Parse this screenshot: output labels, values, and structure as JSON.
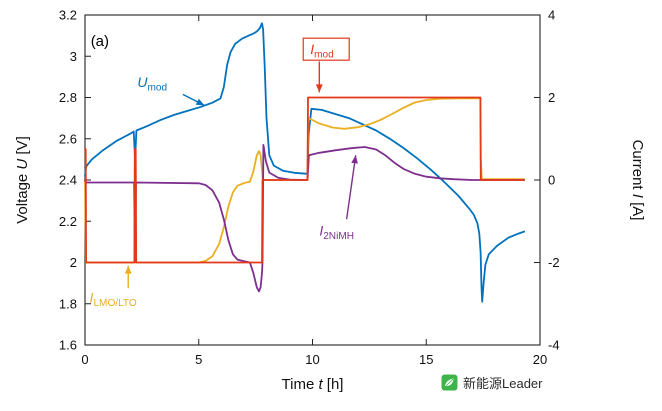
{
  "figure": {
    "panel_label": "(a)"
  },
  "chart_data": {
    "type": "line",
    "title": "",
    "xlabel_parts": {
      "pre": "Time ",
      "italic": "t",
      "post": " [h]"
    },
    "ylabel_left_parts": {
      "pre": "Voltage ",
      "italic": "U",
      "post": " [V]"
    },
    "ylabel_right_parts": {
      "pre": "Current ",
      "italic": "I",
      "post": " [A]"
    },
    "xlim": [
      0,
      20
    ],
    "ylim_left": [
      1.6,
      3.2
    ],
    "ylim_right": [
      -4,
      4
    ],
    "xticks": [
      0,
      5,
      10,
      15,
      20
    ],
    "yticks_left": [
      1.6,
      1.8,
      2,
      2.2,
      2.4,
      2.6,
      2.8,
      3,
      3.2
    ],
    "yticks_right": [
      -4,
      -2,
      0,
      2,
      4
    ],
    "grid": false,
    "legend": "none",
    "axis_color": "#222222",
    "series": [
      {
        "name": "U_mod",
        "axis": "left",
        "color": "#0072bd",
        "points": [
          [
            0,
            2.42
          ],
          [
            0.05,
            2.465
          ],
          [
            0.3,
            2.5
          ],
          [
            0.8,
            2.545
          ],
          [
            1.4,
            2.59
          ],
          [
            2.0,
            2.625
          ],
          [
            2.14,
            2.635
          ],
          [
            2.2,
            2.5
          ],
          [
            2.26,
            2.64
          ],
          [
            2.7,
            2.66
          ],
          [
            3.3,
            2.69
          ],
          [
            3.9,
            2.715
          ],
          [
            4.5,
            2.735
          ],
          [
            5.1,
            2.755
          ],
          [
            5.6,
            2.775
          ],
          [
            5.95,
            2.795
          ],
          [
            6.1,
            2.85
          ],
          [
            6.25,
            2.96
          ],
          [
            6.4,
            3.02
          ],
          [
            6.6,
            3.06
          ],
          [
            6.9,
            3.085
          ],
          [
            7.2,
            3.1
          ],
          [
            7.4,
            3.11
          ],
          [
            7.55,
            3.12
          ],
          [
            7.68,
            3.135
          ],
          [
            7.78,
            3.16
          ],
          [
            7.83,
            3.13
          ],
          [
            7.9,
            2.95
          ],
          [
            7.98,
            2.7
          ],
          [
            8.1,
            2.52
          ],
          [
            8.3,
            2.47
          ],
          [
            8.7,
            2.445
          ],
          [
            9.2,
            2.435
          ],
          [
            9.78,
            2.43
          ],
          [
            9.83,
            2.62
          ],
          [
            9.95,
            2.745
          ],
          [
            10.4,
            2.74
          ],
          [
            11.0,
            2.72
          ],
          [
            11.6,
            2.7
          ],
          [
            12.2,
            2.67
          ],
          [
            12.8,
            2.64
          ],
          [
            13.4,
            2.6
          ],
          [
            14.0,
            2.555
          ],
          [
            14.6,
            2.505
          ],
          [
            15.2,
            2.45
          ],
          [
            15.8,
            2.39
          ],
          [
            16.4,
            2.325
          ],
          [
            16.9,
            2.26
          ],
          [
            17.1,
            2.23
          ],
          [
            17.25,
            2.19
          ],
          [
            17.33,
            2.14
          ],
          [
            17.39,
            2.05
          ],
          [
            17.43,
            1.88
          ],
          [
            17.46,
            1.81
          ],
          [
            17.52,
            1.9
          ],
          [
            17.6,
            1.99
          ],
          [
            17.75,
            2.04
          ],
          [
            18.1,
            2.08
          ],
          [
            18.6,
            2.12
          ],
          [
            19.05,
            2.14
          ],
          [
            19.3,
            2.15
          ]
        ]
      },
      {
        "name": "I_LMO_LTO",
        "axis": "right",
        "color": "#eaaf21",
        "points": [
          [
            0,
            0
          ],
          [
            0.04,
            -2
          ],
          [
            5.0,
            -2
          ],
          [
            5.3,
            -1.96
          ],
          [
            5.6,
            -1.85
          ],
          [
            5.9,
            -1.55
          ],
          [
            6.1,
            -1.15
          ],
          [
            6.3,
            -0.65
          ],
          [
            6.5,
            -0.3
          ],
          [
            6.7,
            -0.14
          ],
          [
            7.0,
            -0.07
          ],
          [
            7.25,
            -0.04
          ],
          [
            7.4,
            0.2
          ],
          [
            7.55,
            0.6
          ],
          [
            7.65,
            0.7
          ],
          [
            7.72,
            0.6
          ],
          [
            7.78,
            0.25
          ],
          [
            7.8,
            0.05
          ],
          [
            7.85,
            0.0
          ],
          [
            9.78,
            0.0
          ],
          [
            9.82,
            1.5
          ],
          [
            10.3,
            1.37
          ],
          [
            10.9,
            1.27
          ],
          [
            11.4,
            1.24
          ],
          [
            12.0,
            1.28
          ],
          [
            12.5,
            1.35
          ],
          [
            13.0,
            1.46
          ],
          [
            13.5,
            1.6
          ],
          [
            14.0,
            1.75
          ],
          [
            14.5,
            1.88
          ],
          [
            15.0,
            1.94
          ],
          [
            15.6,
            1.97
          ],
          [
            16.5,
            1.98
          ],
          [
            17.38,
            1.98
          ],
          [
            17.4,
            0.5
          ],
          [
            17.44,
            0.02
          ],
          [
            19.3,
            0.02
          ]
        ]
      },
      {
        "name": "I_2NiMH",
        "axis": "right",
        "color": "#7e2f8e",
        "points": [
          [
            0,
            0
          ],
          [
            0.04,
            -0.06
          ],
          [
            2.16,
            -0.06
          ],
          [
            2.2,
            -1.95
          ],
          [
            2.24,
            -0.06
          ],
          [
            5.0,
            -0.08
          ],
          [
            5.3,
            -0.12
          ],
          [
            5.6,
            -0.25
          ],
          [
            5.9,
            -0.55
          ],
          [
            6.1,
            -0.95
          ],
          [
            6.3,
            -1.45
          ],
          [
            6.5,
            -1.8
          ],
          [
            6.7,
            -1.93
          ],
          [
            7.0,
            -1.97
          ],
          [
            7.25,
            -2.0
          ],
          [
            7.4,
            -2.25
          ],
          [
            7.55,
            -2.6
          ],
          [
            7.65,
            -2.7
          ],
          [
            7.72,
            -2.6
          ],
          [
            7.78,
            -2.25
          ],
          [
            7.8,
            -2.0
          ],
          [
            7.84,
            0.85
          ],
          [
            7.95,
            0.45
          ],
          [
            8.1,
            0.18
          ],
          [
            8.5,
            0.05
          ],
          [
            9.0,
            0.01
          ],
          [
            9.78,
            0.0
          ],
          [
            9.84,
            0.6
          ],
          [
            10.3,
            0.66
          ],
          [
            11.0,
            0.72
          ],
          [
            11.7,
            0.77
          ],
          [
            12.3,
            0.8
          ],
          [
            12.8,
            0.74
          ],
          [
            13.2,
            0.6
          ],
          [
            13.6,
            0.42
          ],
          [
            14.0,
            0.27
          ],
          [
            14.5,
            0.15
          ],
          [
            15.0,
            0.08
          ],
          [
            15.6,
            0.04
          ],
          [
            16.2,
            0.02
          ],
          [
            17.0,
            0.0
          ],
          [
            17.4,
            0.0
          ],
          [
            19.3,
            0.0
          ]
        ]
      },
      {
        "name": "I_mod",
        "axis": "right",
        "color": "#e2391b",
        "points": [
          [
            0,
            0.75
          ],
          [
            0.03,
            0.75
          ],
          [
            0.05,
            -2
          ],
          [
            2.17,
            -2
          ],
          [
            2.19,
            0.75
          ],
          [
            2.23,
            0.75
          ],
          [
            2.25,
            -2
          ],
          [
            7.78,
            -2
          ],
          [
            7.8,
            0
          ],
          [
            9.78,
            0
          ],
          [
            9.8,
            2
          ],
          [
            17.38,
            2
          ],
          [
            17.4,
            0
          ],
          [
            19.3,
            0
          ]
        ]
      }
    ],
    "annotations": [
      {
        "id": "panel-a",
        "main": "(a)",
        "sub": "",
        "italic": false,
        "color": "#000000",
        "x": 0.25,
        "y": 3.05,
        "fontsize": 15
      },
      {
        "id": "U_mod",
        "main": "U",
        "sub": "mod",
        "italic": true,
        "color": "#0072bd",
        "x": 2.3,
        "y": 2.85,
        "fontsize": 14,
        "arrow": {
          "x1": 4.3,
          "y1": 2.815,
          "x2": 5.25,
          "y2": 2.762
        }
      },
      {
        "id": "I_mod",
        "main": "I",
        "sub": "mod",
        "italic": true,
        "color": "#e2391b",
        "x": 9.9,
        "y": 3.01,
        "fontsize": 14,
        "box": {
          "w": 46,
          "h": 22
        },
        "arrow": {
          "x1": 10.3,
          "y1": 2.975,
          "x2": 10.3,
          "y2": 2.825
        }
      },
      {
        "id": "I_2NiMH",
        "main": "I",
        "sub": "2NiMH",
        "italic": true,
        "color": "#7e2f8e",
        "x": 10.3,
        "y": 2.13,
        "fontsize": 14,
        "arrow": {
          "x1": 11.5,
          "y1": 2.21,
          "x2": 11.9,
          "y2": 2.52
        }
      },
      {
        "id": "I_LMO_LTO",
        "main": "I",
        "sub": "LMO/LTO",
        "italic": true,
        "color": "#eaaf21",
        "x": 0.2,
        "y": 1.805,
        "fontsize": 14,
        "arrow": {
          "x1": 1.9,
          "y1": 1.875,
          "x2": 1.9,
          "y2": 1.985
        }
      }
    ]
  },
  "watermark": {
    "logo": "leaf-icon",
    "logo_color": "#3eb44a",
    "text": "新能源Leader"
  }
}
